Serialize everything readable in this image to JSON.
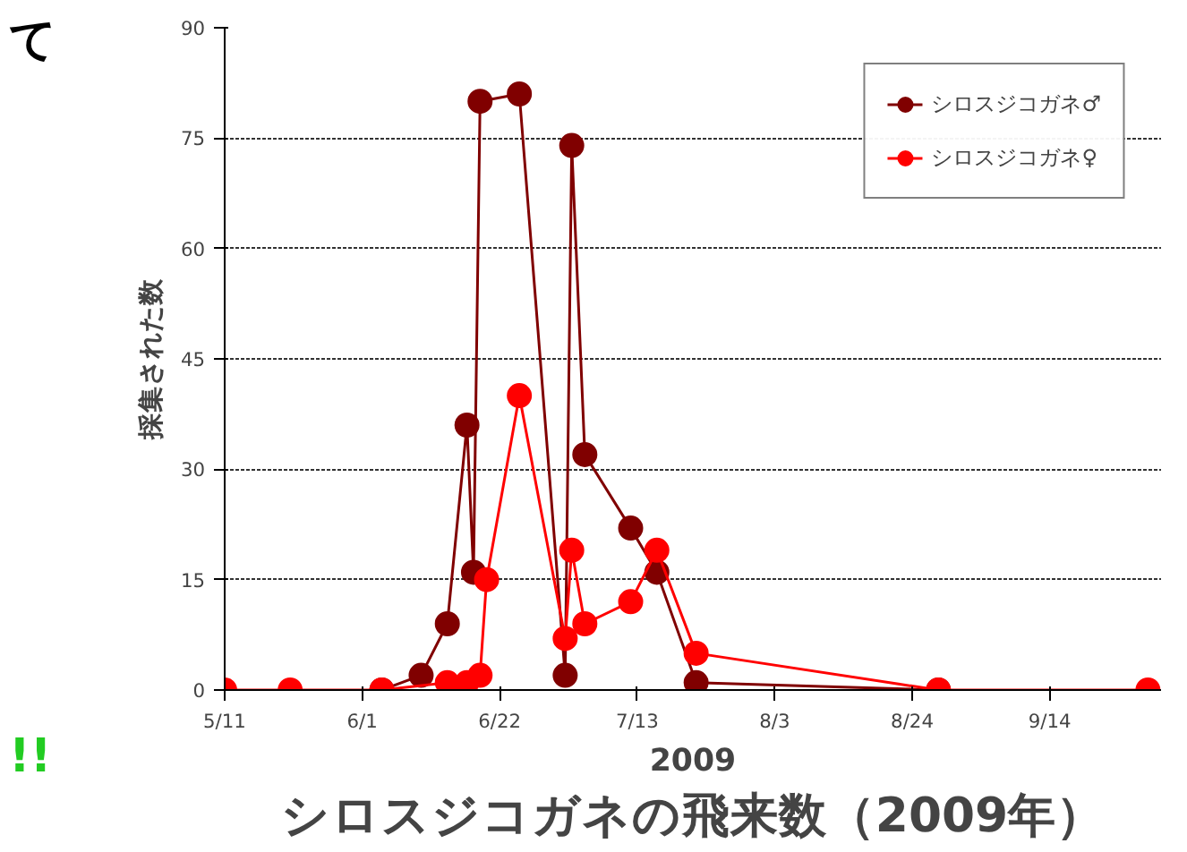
{
  "chart_data": {
    "type": "line",
    "title": "シロスジコガネの飛来数（2009年）",
    "xlabel": "2009",
    "ylabel": "採集された数",
    "x": [
      "2009-05-11",
      "2009-05-21",
      "2009-06-04",
      "2009-06-14",
      "2009-06-17",
      "2009-06-19",
      "2009-06-20",
      "2009-06-25",
      "2009-07-02",
      "2009-07-03",
      "2009-07-05",
      "2009-07-12",
      "2009-07-16",
      "2009-07-22",
      "2009-08-28",
      "2009-09-29"
    ],
    "series": [
      {
        "name": "シロスジコガネ♂",
        "color": "#800000",
        "x": [
          "2009-06-04",
          "2009-06-10",
          "2009-06-14",
          "2009-06-17",
          "2009-06-18",
          "2009-06-19",
          "2009-06-25",
          "2009-07-02",
          "2009-07-03",
          "2009-07-05",
          "2009-07-12",
          "2009-07-16",
          "2009-07-22",
          "2009-08-28"
        ],
        "values": [
          0,
          2,
          9,
          36,
          16,
          80,
          81,
          2,
          74,
          32,
          22,
          16,
          1,
          0
        ]
      },
      {
        "name": "シロスジコガネ♀",
        "color": "#ff0000",
        "values": [
          0,
          0,
          0,
          1,
          1,
          2,
          15,
          40,
          7,
          19,
          9,
          12,
          19,
          5,
          0,
          0
        ]
      }
    ],
    "xlim": [
      "2009-05-11",
      "2009-10-01"
    ],
    "xticks": [
      {
        "value": "2009-05-11",
        "label": "5/11"
      },
      {
        "value": "2009-06-01",
        "label": "6/1"
      },
      {
        "value": "2009-06-22",
        "label": "6/22"
      },
      {
        "value": "2009-07-13",
        "label": "7/13"
      },
      {
        "value": "2009-08-03",
        "label": "8/3"
      },
      {
        "value": "2009-08-24",
        "label": "8/24"
      },
      {
        "value": "2009-09-14",
        "label": "9/14"
      }
    ],
    "ylim": [
      0,
      90
    ],
    "yticks": [
      0,
      15,
      30,
      45,
      60,
      75,
      90
    ],
    "grid": "y",
    "legend": "top right",
    "marker": "circle",
    "line_style": "solid",
    "annotations": [
      "て",
      "!!"
    ]
  }
}
